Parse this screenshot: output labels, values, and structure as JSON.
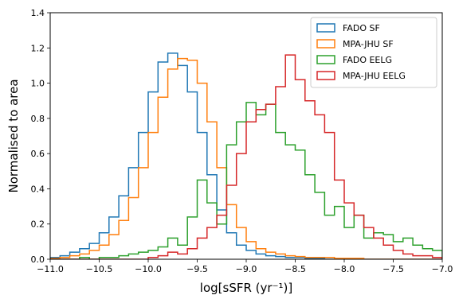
{
  "chart_data": {
    "type": "line",
    "title": "",
    "xlabel": "log[sSFR (yr⁻¹)]",
    "ylabel": "Normalised to area",
    "xlim": [
      -11.0,
      -7.0
    ],
    "ylim": [
      0.0,
      1.4
    ],
    "xticks": [
      -11.0,
      -10.5,
      -10.0,
      -9.5,
      -9.0,
      -8.5,
      -8.0,
      -7.5,
      -7.0
    ],
    "xtick_labels": [
      "−11.0",
      "−10.5",
      "−10.0",
      "−9.5",
      "−9.0",
      "−8.5",
      "−8.0",
      "−7.5",
      "−7.0"
    ],
    "yticks": [
      0.0,
      0.2,
      0.4,
      0.6,
      0.8,
      1.0,
      1.2,
      1.4
    ],
    "ytick_labels": [
      "0.0",
      "0.2",
      "0.4",
      "0.6",
      "0.8",
      "1.0",
      "1.2",
      "1.4"
    ],
    "grid": false,
    "legend_position": "top-right",
    "histogram_style": "step",
    "series": [
      {
        "name": "FADO SF",
        "color": "#1f77b4",
        "edges": [
          -11.0,
          -10.9,
          -10.8,
          -10.7,
          -10.6,
          -10.5,
          -10.4,
          -10.3,
          -10.2,
          -10.1,
          -10.0,
          -9.9,
          -9.8,
          -9.7,
          -9.6,
          -9.5,
          -9.4,
          -9.3,
          -9.2,
          -9.1,
          -9.0,
          -8.9,
          -8.8,
          -8.7,
          -8.6,
          -8.5,
          -8.4,
          -8.3,
          -8.2,
          -8.1,
          -8.0,
          -7.9,
          -7.8,
          -7.7,
          -7.6,
          -7.5,
          -7.4,
          -7.3,
          -7.2,
          -7.1,
          -7.0
        ],
        "values": [
          0.01,
          0.02,
          0.04,
          0.06,
          0.09,
          0.15,
          0.24,
          0.36,
          0.52,
          0.72,
          0.95,
          1.12,
          1.17,
          1.1,
          0.95,
          0.72,
          0.48,
          0.28,
          0.15,
          0.08,
          0.05,
          0.03,
          0.02,
          0.015,
          0.01,
          0.01,
          0.005,
          0.005,
          0.0,
          0.0,
          0.0,
          0.0,
          0.0,
          0.0,
          0.0,
          0.0,
          0.0,
          0.0,
          0.0,
          0.0
        ]
      },
      {
        "name": "MPA-JHU SF",
        "color": "#ff7f0e",
        "edges": [
          -11.0,
          -10.9,
          -10.8,
          -10.7,
          -10.6,
          -10.5,
          -10.4,
          -10.3,
          -10.2,
          -10.1,
          -10.0,
          -9.9,
          -9.8,
          -9.7,
          -9.6,
          -9.5,
          -9.4,
          -9.3,
          -9.2,
          -9.1,
          -9.0,
          -8.9,
          -8.8,
          -8.7,
          -8.6,
          -8.5,
          -8.4,
          -8.3,
          -8.2,
          -8.1,
          -8.0,
          -7.9,
          -7.8,
          -7.7,
          -7.6,
          -7.5,
          -7.4,
          -7.3,
          -7.2,
          -7.1,
          -7.0
        ],
        "values": [
          0.005,
          0.01,
          0.02,
          0.03,
          0.05,
          0.08,
          0.14,
          0.22,
          0.35,
          0.52,
          0.72,
          0.92,
          1.08,
          1.14,
          1.13,
          1.0,
          0.78,
          0.52,
          0.31,
          0.18,
          0.1,
          0.06,
          0.04,
          0.03,
          0.02,
          0.015,
          0.01,
          0.01,
          0.01,
          0.005,
          0.005,
          0.005,
          0.0,
          0.0,
          0.0,
          0.0,
          0.0,
          0.0,
          0.0,
          0.0
        ]
      },
      {
        "name": "FADO EELG",
        "color": "#2ca02c",
        "edges": [
          -11.0,
          -10.9,
          -10.8,
          -10.7,
          -10.6,
          -10.5,
          -10.4,
          -10.3,
          -10.2,
          -10.1,
          -10.0,
          -9.9,
          -9.8,
          -9.7,
          -9.6,
          -9.5,
          -9.4,
          -9.3,
          -9.2,
          -9.1,
          -9.0,
          -8.9,
          -8.8,
          -8.7,
          -8.6,
          -8.5,
          -8.4,
          -8.3,
          -8.2,
          -8.1,
          -8.0,
          -7.9,
          -7.8,
          -7.7,
          -7.6,
          -7.5,
          -7.4,
          -7.3,
          -7.2,
          -7.1,
          -7.0
        ],
        "values": [
          0.0,
          0.0,
          0.0,
          0.01,
          0.0,
          0.01,
          0.01,
          0.02,
          0.03,
          0.04,
          0.05,
          0.07,
          0.12,
          0.08,
          0.24,
          0.45,
          0.32,
          0.2,
          0.65,
          0.78,
          0.89,
          0.82,
          0.88,
          0.72,
          0.65,
          0.62,
          0.48,
          0.38,
          0.25,
          0.3,
          0.18,
          0.25,
          0.12,
          0.15,
          0.14,
          0.1,
          0.12,
          0.08,
          0.06,
          0.05
        ]
      },
      {
        "name": "MPA-JHU EELG",
        "color": "#d62728",
        "edges": [
          -11.0,
          -10.9,
          -10.8,
          -10.7,
          -10.6,
          -10.5,
          -10.4,
          -10.3,
          -10.2,
          -10.1,
          -10.0,
          -9.9,
          -9.8,
          -9.7,
          -9.6,
          -9.5,
          -9.4,
          -9.3,
          -9.2,
          -9.1,
          -9.0,
          -8.9,
          -8.8,
          -8.7,
          -8.6,
          -8.5,
          -8.4,
          -8.3,
          -8.2,
          -8.1,
          -8.0,
          -7.9,
          -7.8,
          -7.7,
          -7.6,
          -7.5,
          -7.4,
          -7.3,
          -7.2,
          -7.1,
          -7.0
        ],
        "values": [
          0.0,
          0.0,
          0.0,
          0.0,
          0.0,
          0.0,
          0.0,
          0.0,
          0.0,
          0.0,
          0.01,
          0.02,
          0.04,
          0.03,
          0.06,
          0.12,
          0.18,
          0.25,
          0.42,
          0.6,
          0.78,
          0.85,
          0.88,
          0.98,
          1.16,
          1.02,
          0.9,
          0.82,
          0.72,
          0.45,
          0.32,
          0.25,
          0.18,
          0.12,
          0.08,
          0.05,
          0.03,
          0.02,
          0.02,
          0.01
        ]
      }
    ]
  }
}
